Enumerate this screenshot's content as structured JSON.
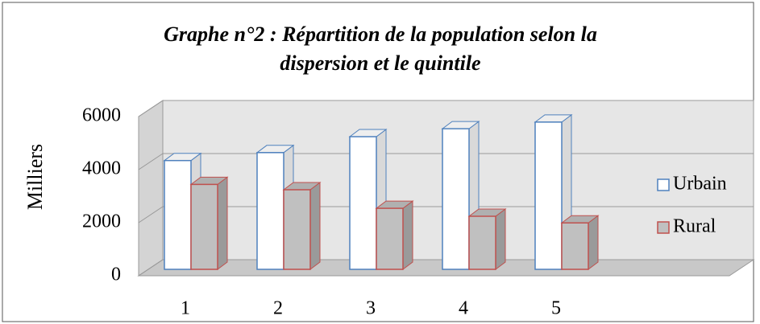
{
  "chart_data": {
    "type": "bar3d",
    "title": [
      "Graphe n°2 : Répartition de la population selon la",
      "dispersion et le quintile"
    ],
    "y_label": "Milliers",
    "categories": [
      "1",
      "2",
      "3",
      "4",
      "5"
    ],
    "series": [
      {
        "name": "Urbain",
        "color": "#ffffff",
        "edge": "#4f81bd",
        "values": [
          4100,
          4400,
          5000,
          5300,
          5550
        ]
      },
      {
        "name": "Rural",
        "color": "#c0c0c0",
        "edge": "#c0504d",
        "values": [
          3200,
          3000,
          2300,
          2000,
          1750
        ]
      }
    ],
    "ylim": [
      0,
      6000
    ],
    "yticks": [
      0,
      2000,
      4000,
      6000
    ],
    "grid": true,
    "legend": "right"
  }
}
